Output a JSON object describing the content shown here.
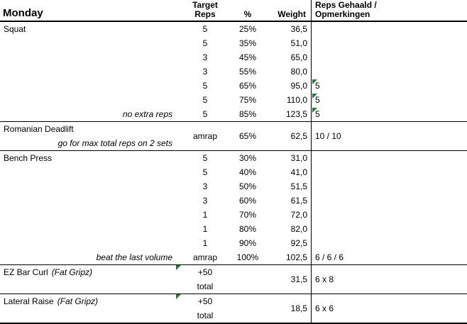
{
  "header": {
    "title": "Monday",
    "target_line1": "Target",
    "target_line2": "Reps",
    "pct": "%",
    "weight": "Weight",
    "result_line1": "Reps Gehaald /",
    "result_line2": "Opmerkingen"
  },
  "colors": {
    "border": "#000000",
    "text": "#000000",
    "background": "#ffffff",
    "flag_green": "#1e7b33"
  },
  "sections": [
    {
      "name": "Squat",
      "name_suffix": "",
      "rows": [
        {
          "note": "",
          "target": "5",
          "pct": "25%",
          "weight": "36,5",
          "result": "",
          "flag": false
        },
        {
          "note": "",
          "target": "5",
          "pct": "35%",
          "weight": "51,0",
          "result": "",
          "flag": false
        },
        {
          "note": "",
          "target": "3",
          "pct": "45%",
          "weight": "65,0",
          "result": "",
          "flag": false
        },
        {
          "note": "",
          "target": "3",
          "pct": "55%",
          "weight": "80,0",
          "result": "",
          "flag": false
        },
        {
          "note": "",
          "target": "5",
          "pct": "65%",
          "weight": "95,0",
          "result": "5",
          "flag": true
        },
        {
          "note": "",
          "target": "5",
          "pct": "75%",
          "weight": "110,0",
          "result": "5",
          "flag": true
        },
        {
          "note": "no extra reps",
          "target": "5",
          "pct": "85%",
          "weight": "123,5",
          "result": "5",
          "flag": true
        }
      ]
    },
    {
      "name": "Romanian Deadlift",
      "name_suffix": "",
      "rows": [
        {
          "note": ""
        },
        {
          "note": "go for max total reps on 2 sets"
        }
      ],
      "merged": {
        "target": "amrap",
        "pct": "65%",
        "weight": "62,5",
        "result": "10 / 10"
      }
    },
    {
      "name": "Bench Press",
      "name_suffix": "",
      "rows": [
        {
          "note": "",
          "target": "5",
          "pct": "30%",
          "weight": "31,0",
          "result": "",
          "flag": false
        },
        {
          "note": "",
          "target": "5",
          "pct": "40%",
          "weight": "41,0",
          "result": "",
          "flag": false
        },
        {
          "note": "",
          "target": "3",
          "pct": "50%",
          "weight": "51,5",
          "result": "",
          "flag": false
        },
        {
          "note": "",
          "target": "3",
          "pct": "60%",
          "weight": "61,5",
          "result": "",
          "flag": false
        },
        {
          "note": "",
          "target": "1",
          "pct": "70%",
          "weight": "72,0",
          "result": "",
          "flag": false
        },
        {
          "note": "",
          "target": "1",
          "pct": "80%",
          "weight": "82,0",
          "result": "",
          "flag": false
        },
        {
          "note": "",
          "target": "1",
          "pct": "90%",
          "weight": "92,5",
          "result": "",
          "flag": false
        },
        {
          "note": "beat the last volume",
          "target": "amrap",
          "pct": "100%",
          "weight": "102,5",
          "result": "6 / 6 / 6",
          "flag": false
        }
      ]
    },
    {
      "name": "EZ Bar Curl",
      "name_suffix": "(Fat Gripz)",
      "target_flag": true,
      "rows": [
        {
          "note": "",
          "target": "+50"
        },
        {
          "note": "",
          "target": "total"
        }
      ],
      "merged": {
        "weight": "31,5",
        "result": "6 x 8"
      }
    },
    {
      "name": "Lateral Raise",
      "name_suffix": "(Fat Gripz)",
      "target_flag": true,
      "rows": [
        {
          "note": "",
          "target": "+50"
        },
        {
          "note": "",
          "target": "total"
        }
      ],
      "merged": {
        "weight": "18,5",
        "result": "6 x 6"
      }
    }
  ]
}
